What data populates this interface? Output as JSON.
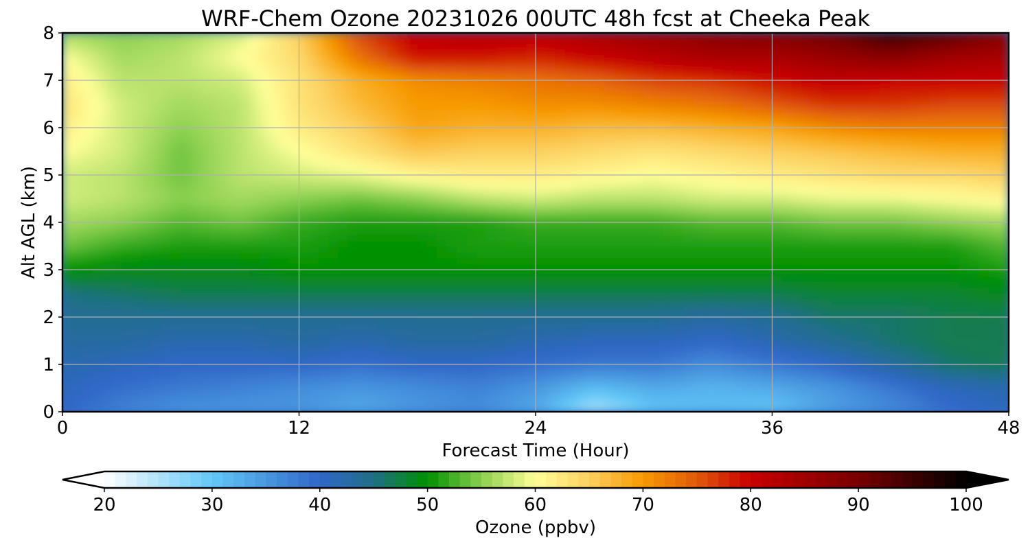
{
  "chart_data": {
    "type": "heatmap",
    "title": "WRF-Chem Ozone  20231026 00UTC 48h fcst at Cheeka Peak",
    "xlabel": "Forecast Time (Hour)",
    "ylabel": "Alt AGL (km)",
    "xlim": [
      0,
      48
    ],
    "ylim": [
      0,
      8
    ],
    "x_ticks": [
      "0",
      "12",
      "24",
      "36",
      "48"
    ],
    "y_ticks": [
      "0",
      "1",
      "2",
      "3",
      "4",
      "5",
      "6",
      "7",
      "8"
    ],
    "grid": true,
    "x_hours": [
      0,
      3,
      6,
      9,
      12,
      15,
      18,
      21,
      24,
      27,
      30,
      33,
      36,
      39,
      42,
      45,
      48
    ],
    "y_km": [
      0,
      0.5,
      1,
      1.5,
      2,
      2.5,
      3,
      3.5,
      4,
      4.5,
      5,
      5.5,
      6,
      6.5,
      7,
      7.5,
      8
    ],
    "ozone_ppbv": [
      [
        40,
        37,
        35,
        35,
        35,
        33,
        35,
        36,
        33,
        25,
        30,
        31,
        30,
        34,
        36,
        39,
        41
      ],
      [
        41,
        39,
        38,
        37,
        36,
        35,
        36,
        37,
        35,
        31,
        33,
        32,
        33,
        35,
        38,
        41,
        42
      ],
      [
        42,
        41,
        40,
        40,
        40,
        39,
        40,
        40,
        39,
        38,
        38,
        36,
        38,
        40,
        43,
        46,
        47
      ],
      [
        43,
        43,
        42,
        42,
        43,
        42,
        43,
        43,
        42,
        41,
        41,
        40,
        42,
        44,
        46,
        47,
        47
      ],
      [
        44,
        44,
        44,
        44,
        44,
        44,
        44,
        44,
        44,
        44,
        44,
        43,
        44,
        46,
        46,
        47,
        47
      ],
      [
        45,
        46,
        47,
        47,
        47,
        47,
        47,
        47,
        47,
        47,
        47,
        47,
        47,
        48,
        48,
        48,
        49
      ],
      [
        50,
        49,
        49,
        49,
        50,
        50,
        50,
        50,
        50,
        50,
        50,
        50,
        50,
        50,
        50,
        50,
        51
      ],
      [
        54,
        52,
        51,
        51,
        51,
        50,
        50,
        51,
        51,
        51,
        51,
        51,
        51,
        51,
        51,
        51,
        53
      ],
      [
        56,
        55,
        53,
        54,
        52,
        51,
        51,
        51,
        52,
        52,
        52,
        53,
        53,
        54,
        54,
        55,
        56
      ],
      [
        58,
        57,
        55,
        56,
        55,
        54,
        55,
        57,
        58,
        57,
        57,
        58,
        58,
        59,
        59,
        60,
        61
      ],
      [
        58,
        57,
        54,
        57,
        58,
        59,
        61,
        62,
        62,
        61,
        60,
        61,
        62,
        63,
        64,
        64,
        65
      ],
      [
        60,
        58,
        54,
        57,
        60,
        63,
        66,
        65,
        65,
        64,
        63,
        64,
        65,
        66,
        67,
        68,
        68
      ],
      [
        62,
        58,
        55,
        57,
        62,
        65,
        69,
        68,
        68,
        67,
        67,
        68,
        69,
        71,
        72,
        72,
        72
      ],
      [
        63,
        58,
        56,
        57,
        63,
        67,
        70,
        70,
        71,
        71,
        72,
        73,
        75,
        77,
        77,
        76,
        76
      ],
      [
        62,
        57,
        57,
        58,
        63,
        68,
        71,
        72,
        73,
        74,
        76,
        77,
        79,
        81,
        80,
        80,
        80
      ],
      [
        60,
        56,
        57,
        60,
        64,
        73,
        79,
        79,
        78,
        80,
        82,
        84,
        84,
        86,
        88,
        85,
        84
      ],
      [
        56,
        55,
        56,
        58,
        65,
        76,
        81,
        82,
        82,
        84,
        86,
        88,
        89,
        91,
        96,
        93,
        88
      ]
    ],
    "colorbar": {
      "label": "Ozone  (ppbv)",
      "min": 20,
      "max": 100,
      "ticks": [
        "20",
        "30",
        "40",
        "50",
        "60",
        "70",
        "80",
        "90",
        "100"
      ],
      "extend": "both",
      "stops": [
        {
          "v": 20,
          "color": "#ffffff"
        },
        {
          "v": 30,
          "color": "#62c8f7"
        },
        {
          "v": 40,
          "color": "#3066c8"
        },
        {
          "v": 45,
          "color": "#1f6f85"
        },
        {
          "v": 50,
          "color": "#009000"
        },
        {
          "v": 55,
          "color": "#8cd050"
        },
        {
          "v": 60,
          "color": "#ffff99"
        },
        {
          "v": 65,
          "color": "#fcd060"
        },
        {
          "v": 70,
          "color": "#f79a00"
        },
        {
          "v": 75,
          "color": "#e05a0a"
        },
        {
          "v": 80,
          "color": "#c80000"
        },
        {
          "v": 90,
          "color": "#780000"
        },
        {
          "v": 100,
          "color": "#000000"
        }
      ]
    }
  }
}
